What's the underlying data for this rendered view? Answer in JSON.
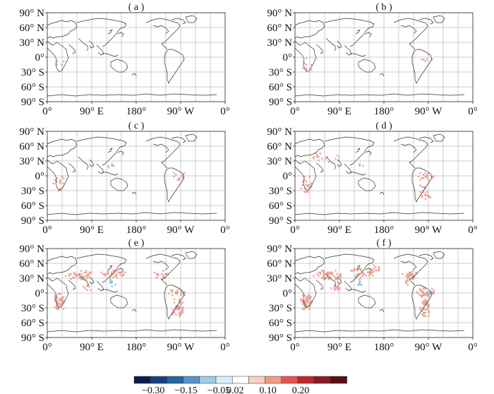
{
  "figure": {
    "panels": [
      {
        "label": "( a )",
        "col": 0,
        "row": 0,
        "intensity": 0.05
      },
      {
        "label": "( b )",
        "col": 1,
        "row": 0,
        "intensity": 0.12
      },
      {
        "label": "( c )",
        "col": 0,
        "row": 1,
        "intensity": 0.25
      },
      {
        "label": "( d )",
        "col": 1,
        "row": 1,
        "intensity": 0.45
      },
      {
        "label": "( e )",
        "col": 0,
        "row": 2,
        "intensity": 0.75
      },
      {
        "label": "( f )",
        "col": 1,
        "row": 2,
        "intensity": 0.95
      }
    ],
    "lat_ticks": [
      "90° N",
      "60° N",
      "30° N",
      "0°",
      "30° S",
      "60° S",
      "90° S"
    ],
    "lon_ticks": [
      "0°",
      "90° E",
      "180°",
      "90° W",
      "0°"
    ],
    "colorbar": {
      "colors": [
        "#0a1f4d",
        "#15427f",
        "#2864a3",
        "#5891c3",
        "#9ecbe5",
        "#dceefa",
        "#ffffff",
        "#f9cfc2",
        "#f19a86",
        "#e0584a",
        "#c0252a",
        "#8a1b1f",
        "#5a0e12"
      ],
      "labels": [
        "−0.30",
        "−0.15",
        "−0.05",
        "0.02",
        "0.10",
        "0.20"
      ],
      "label_after_box": [
        1,
        3,
        5,
        6,
        8,
        10
      ]
    },
    "colors": {
      "coast": "#333333",
      "grid": "#999999",
      "pos": "#f0a294",
      "neg": "#8fc3e3"
    }
  }
}
